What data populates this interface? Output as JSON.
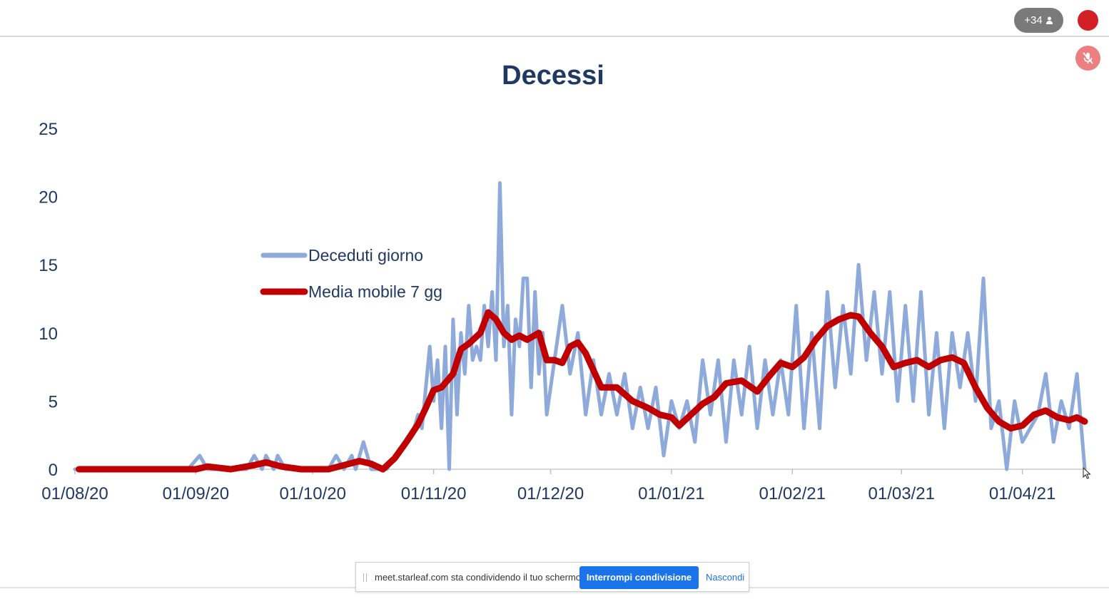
{
  "topbar": {
    "participants_label": "+34",
    "icons": [
      "person-icon",
      "recording-indicator",
      "mic-muted-icon"
    ],
    "colors": {
      "record": "#d32025",
      "mic_muted": "#ec8080",
      "participants_bg": "#7a7a7a"
    }
  },
  "share_bar": {
    "message": "meet.starleaf.com sta condividendo il tuo schermo.",
    "stop_label": "Interrompi condivisione",
    "hide_label": "Nascondi"
  },
  "chart_data": {
    "type": "line",
    "title": "Decessi",
    "xlabel": "",
    "ylabel": "",
    "ylim": [
      0,
      25
    ],
    "yticks": [
      0,
      5,
      10,
      15,
      20,
      25
    ],
    "x_ticks": [
      "01/08/20",
      "01/09/20",
      "01/10/20",
      "01/11/20",
      "01/12/20",
      "01/01/21",
      "01/02/21",
      "01/03/21",
      "01/04/21"
    ],
    "legend_position": "upper-left",
    "series": [
      {
        "name": "Deceduti giorno",
        "color": "#8eaadb",
        "points": [
          [
            "01/08/20",
            0
          ],
          [
            "15/08/20",
            0
          ],
          [
            "30/08/20",
            0
          ],
          [
            "02/09/20",
            1
          ],
          [
            "04/09/20",
            0
          ],
          [
            "14/09/20",
            0
          ],
          [
            "16/09/20",
            1
          ],
          [
            "18/09/20",
            0
          ],
          [
            "19/09/20",
            1
          ],
          [
            "21/09/20",
            0
          ],
          [
            "22/09/20",
            1
          ],
          [
            "24/09/20",
            0
          ],
          [
            "05/10/20",
            0
          ],
          [
            "07/10/20",
            1
          ],
          [
            "09/10/20",
            0
          ],
          [
            "11/10/20",
            1
          ],
          [
            "12/10/20",
            0
          ],
          [
            "14/10/20",
            2
          ],
          [
            "16/10/20",
            0
          ],
          [
            "20/10/20",
            0
          ],
          [
            "22/10/20",
            1
          ],
          [
            "25/10/20",
            2
          ],
          [
            "27/10/20",
            3
          ],
          [
            "28/10/20",
            4
          ],
          [
            "29/10/20",
            3
          ],
          [
            "31/10/20",
            9
          ],
          [
            "01/11/20",
            5
          ],
          [
            "02/11/20",
            8
          ],
          [
            "03/11/20",
            3
          ],
          [
            "04/11/20",
            9
          ],
          [
            "05/11/20",
            0
          ],
          [
            "06/11/20",
            11
          ],
          [
            "07/11/20",
            4
          ],
          [
            "08/11/20",
            10
          ],
          [
            "09/11/20",
            7
          ],
          [
            "10/11/20",
            12
          ],
          [
            "11/11/20",
            8
          ],
          [
            "12/11/20",
            9
          ],
          [
            "13/11/20",
            8
          ],
          [
            "14/11/20",
            12
          ],
          [
            "15/11/20",
            9
          ],
          [
            "16/11/20",
            13
          ],
          [
            "17/11/20",
            8
          ],
          [
            "18/11/20",
            21
          ],
          [
            "19/11/20",
            9
          ],
          [
            "20/11/20",
            12
          ],
          [
            "21/11/20",
            4
          ],
          [
            "22/11/20",
            11
          ],
          [
            "23/11/20",
            9
          ],
          [
            "24/11/20",
            14
          ],
          [
            "25/11/20",
            14
          ],
          [
            "26/11/20",
            6
          ],
          [
            "27/11/20",
            13
          ],
          [
            "28/11/20",
            7
          ],
          [
            "29/11/20",
            10
          ],
          [
            "30/11/20",
            4
          ],
          [
            "02/12/20",
            8
          ],
          [
            "04/12/20",
            12
          ],
          [
            "06/12/20",
            7
          ],
          [
            "08/12/20",
            10
          ],
          [
            "10/12/20",
            4
          ],
          [
            "12/12/20",
            8
          ],
          [
            "14/12/20",
            4
          ],
          [
            "16/12/20",
            7
          ],
          [
            "18/12/20",
            4
          ],
          [
            "20/12/20",
            7
          ],
          [
            "22/12/20",
            3
          ],
          [
            "24/12/20",
            6
          ],
          [
            "26/12/20",
            3
          ],
          [
            "28/12/20",
            6
          ],
          [
            "30/12/20",
            1
          ],
          [
            "01/01/21",
            5
          ],
          [
            "03/01/21",
            3
          ],
          [
            "05/01/21",
            5
          ],
          [
            "07/01/21",
            2
          ],
          [
            "09/01/21",
            8
          ],
          [
            "11/01/21",
            4
          ],
          [
            "13/01/21",
            8
          ],
          [
            "15/01/21",
            2
          ],
          [
            "17/01/21",
            8
          ],
          [
            "19/01/21",
            4
          ],
          [
            "21/01/21",
            9
          ],
          [
            "23/01/21",
            3
          ],
          [
            "25/01/21",
            8
          ],
          [
            "27/01/21",
            4
          ],
          [
            "29/01/21",
            8
          ],
          [
            "31/01/21",
            4
          ],
          [
            "02/02/21",
            12
          ],
          [
            "04/02/21",
            3
          ],
          [
            "06/02/21",
            10
          ],
          [
            "08/02/21",
            3
          ],
          [
            "10/02/21",
            13
          ],
          [
            "12/02/21",
            6
          ],
          [
            "14/02/21",
            12
          ],
          [
            "16/02/21",
            7
          ],
          [
            "18/02/21",
            15
          ],
          [
            "20/02/21",
            8
          ],
          [
            "22/02/21",
            13
          ],
          [
            "24/02/21",
            7
          ],
          [
            "26/02/21",
            13
          ],
          [
            "28/02/21",
            5
          ],
          [
            "02/03/21",
            12
          ],
          [
            "04/03/21",
            5
          ],
          [
            "06/03/21",
            13
          ],
          [
            "08/03/21",
            4
          ],
          [
            "10/03/21",
            10
          ],
          [
            "12/03/21",
            3
          ],
          [
            "14/03/21",
            10
          ],
          [
            "16/03/21",
            6
          ],
          [
            "18/03/21",
            10
          ],
          [
            "20/03/21",
            5
          ],
          [
            "22/03/21",
            14
          ],
          [
            "24/03/21",
            3
          ],
          [
            "26/03/21",
            5
          ],
          [
            "28/03/21",
            0
          ],
          [
            "30/03/21",
            5
          ],
          [
            "01/04/21",
            2
          ],
          [
            "03/04/21",
            3
          ],
          [
            "05/04/21",
            4
          ],
          [
            "07/04/21",
            7
          ],
          [
            "09/04/21",
            2
          ],
          [
            "11/04/21",
            5
          ],
          [
            "13/04/21",
            3
          ],
          [
            "15/04/21",
            7
          ],
          [
            "17/04/21",
            0
          ]
        ]
      },
      {
        "name": "Media mobile 7 gg",
        "color": "#c00000",
        "points": [
          [
            "02/08/20",
            0
          ],
          [
            "01/09/20",
            0
          ],
          [
            "04/09/20",
            0.2
          ],
          [
            "10/09/20",
            0
          ],
          [
            "16/09/20",
            0.3
          ],
          [
            "19/09/20",
            0.5
          ],
          [
            "23/09/20",
            0.2
          ],
          [
            "28/09/20",
            0
          ],
          [
            "05/10/20",
            0
          ],
          [
            "09/10/20",
            0.3
          ],
          [
            "13/10/20",
            0.6
          ],
          [
            "16/10/20",
            0.4
          ],
          [
            "19/10/20",
            0
          ],
          [
            "22/10/20",
            0.8
          ],
          [
            "25/10/20",
            2
          ],
          [
            "28/10/20",
            3.3
          ],
          [
            "30/10/20",
            4.5
          ],
          [
            "01/11/20",
            5.8
          ],
          [
            "03/11/20",
            6
          ],
          [
            "06/11/20",
            7
          ],
          [
            "08/11/20",
            8.8
          ],
          [
            "10/11/20",
            9.2
          ],
          [
            "13/11/20",
            10
          ],
          [
            "15/11/20",
            11.5
          ],
          [
            "17/11/20",
            11
          ],
          [
            "19/11/20",
            10
          ],
          [
            "21/11/20",
            9.5
          ],
          [
            "23/11/20",
            9.8
          ],
          [
            "25/11/20",
            9.5
          ],
          [
            "28/11/20",
            10
          ],
          [
            "30/11/20",
            8
          ],
          [
            "02/12/20",
            8
          ],
          [
            "04/12/20",
            7.8
          ],
          [
            "06/12/20",
            9
          ],
          [
            "08/12/20",
            9.3
          ],
          [
            "10/12/20",
            8.5
          ],
          [
            "14/12/20",
            6
          ],
          [
            "18/12/20",
            6
          ],
          [
            "22/12/20",
            5
          ],
          [
            "26/12/20",
            4.5
          ],
          [
            "29/12/20",
            4
          ],
          [
            "01/01/21",
            3.8
          ],
          [
            "03/01/21",
            3.2
          ],
          [
            "06/01/21",
            4
          ],
          [
            "09/01/21",
            4.8
          ],
          [
            "12/01/21",
            5.3
          ],
          [
            "15/01/21",
            6.3
          ],
          [
            "19/01/21",
            6.5
          ],
          [
            "23/01/21",
            5.7
          ],
          [
            "26/01/21",
            6.8
          ],
          [
            "29/01/21",
            7.8
          ],
          [
            "01/02/21",
            7.5
          ],
          [
            "04/02/21",
            8.2
          ],
          [
            "07/02/21",
            9.5
          ],
          [
            "10/02/21",
            10.5
          ],
          [
            "13/02/21",
            11
          ],
          [
            "16/02/21",
            11.3
          ],
          [
            "18/02/21",
            11.2
          ],
          [
            "21/02/21",
            10
          ],
          [
            "24/02/21",
            9
          ],
          [
            "27/02/21",
            7.5
          ],
          [
            "02/03/21",
            7.8
          ],
          [
            "05/03/21",
            8
          ],
          [
            "08/03/21",
            7.5
          ],
          [
            "11/03/21",
            8
          ],
          [
            "14/03/21",
            8.2
          ],
          [
            "17/03/21",
            7.8
          ],
          [
            "20/03/21",
            6
          ],
          [
            "23/03/21",
            4.5
          ],
          [
            "26/03/21",
            3.5
          ],
          [
            "29/03/21",
            3
          ],
          [
            "01/04/21",
            3.2
          ],
          [
            "04/04/21",
            4
          ],
          [
            "07/04/21",
            4.3
          ],
          [
            "10/04/21",
            3.8
          ],
          [
            "13/04/21",
            3.6
          ],
          [
            "15/04/21",
            3.8
          ],
          [
            "17/04/21",
            3.5
          ]
        ]
      }
    ]
  }
}
